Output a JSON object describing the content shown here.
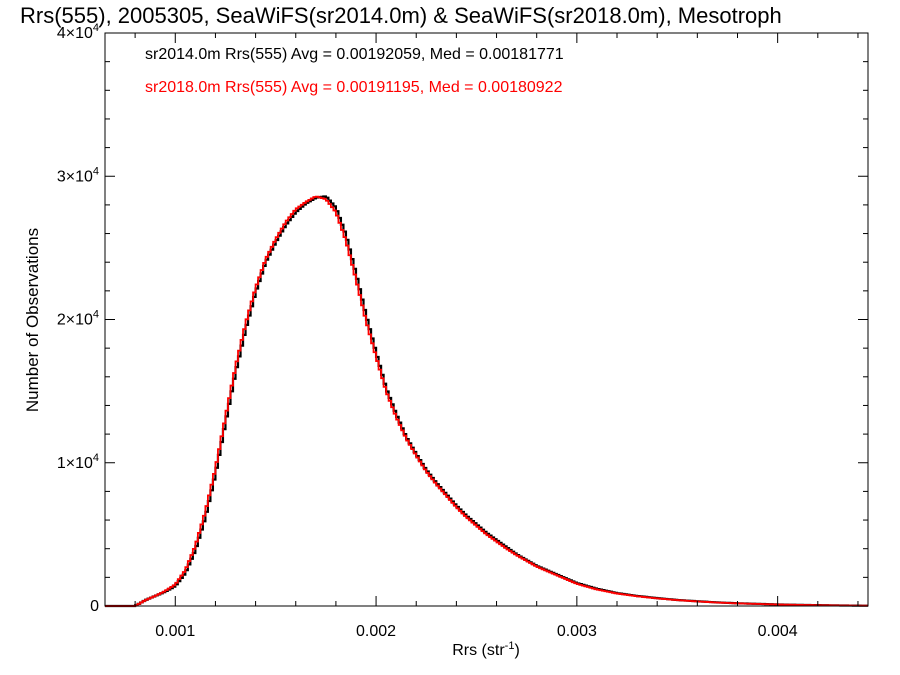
{
  "chart_data": {
    "type": "line",
    "title": "Rrs(555), 2005305, SeaWiFS(sr2014.0m) & SeaWiFS(sr2018.0m), Mesotroph",
    "xlabel": "Rrs (str",
    "xlabel_sup": "-1",
    "xlabel_end": ")",
    "ylabel": "Number of Observations",
    "xlim": [
      0.00065,
      0.00445
    ],
    "ylim": [
      0,
      40000
    ],
    "x_ticks": [
      {
        "value": 0.001,
        "label": "0.001"
      },
      {
        "value": 0.002,
        "label": "0.002"
      },
      {
        "value": 0.003,
        "label": "0.003"
      },
      {
        "value": 0.004,
        "label": "0.004"
      }
    ],
    "y_ticks": [
      {
        "value": 0,
        "mant": "0",
        "exp": ""
      },
      {
        "value": 10000,
        "mant": "1×10",
        "exp": "4"
      },
      {
        "value": 20000,
        "mant": "2×10",
        "exp": "4"
      },
      {
        "value": 30000,
        "mant": "3×10",
        "exp": "4"
      },
      {
        "value": 40000,
        "mant": "4×10",
        "exp": "4"
      }
    ],
    "annotations": [
      {
        "text": "sr2014.0m Rrs(555) Avg = 0.00192059, Med = 0.00181771",
        "color": "#000000"
      },
      {
        "text": "sr2018.0m Rrs(555) Avg = 0.00191195, Med = 0.00180922",
        "color": "#ff0000"
      }
    ],
    "series": [
      {
        "name": "sr2014.0m",
        "color": "#000000",
        "x": [
          0.00065,
          0.0008,
          0.00085,
          0.0009,
          0.00095,
          0.001,
          0.00105,
          0.0011,
          0.00115,
          0.0012,
          0.00125,
          0.0013,
          0.00135,
          0.0014,
          0.00145,
          0.0015,
          0.00155,
          0.0016,
          0.00165,
          0.0017,
          0.00175,
          0.0018,
          0.00185,
          0.0019,
          0.00195,
          0.002,
          0.00205,
          0.0021,
          0.00215,
          0.0022,
          0.00225,
          0.0023,
          0.00235,
          0.0024,
          0.00245,
          0.0025,
          0.00255,
          0.0026,
          0.00265,
          0.0027,
          0.00275,
          0.0028,
          0.00285,
          0.0029,
          0.00295,
          0.003,
          0.0031,
          0.0032,
          0.0033,
          0.0034,
          0.0035,
          0.0036,
          0.0037,
          0.0038,
          0.0039,
          0.004,
          0.0041,
          0.0042,
          0.0043,
          0.0044,
          0.00445
        ],
        "y": [
          0,
          0,
          400,
          700,
          1000,
          1400,
          2300,
          3900,
          6200,
          9200,
          12800,
          16300,
          19300,
          21900,
          24000,
          25400,
          26600,
          27500,
          28100,
          28500,
          28600,
          27800,
          25900,
          23200,
          20300,
          17700,
          15200,
          13400,
          11800,
          10600,
          9500,
          8600,
          7800,
          7000,
          6300,
          5700,
          5100,
          4600,
          4100,
          3600,
          3200,
          2800,
          2500,
          2200,
          1900,
          1600,
          1200,
          900,
          700,
          550,
          420,
          330,
          250,
          190,
          150,
          110,
          80,
          60,
          40,
          25,
          20
        ]
      },
      {
        "name": "sr2018.0m",
        "color": "#ff0000",
        "x": [
          0.00065,
          0.0008,
          0.00085,
          0.0009,
          0.00095,
          0.001,
          0.00105,
          0.0011,
          0.00115,
          0.0012,
          0.00125,
          0.0013,
          0.00135,
          0.0014,
          0.00145,
          0.0015,
          0.00155,
          0.0016,
          0.00165,
          0.0017,
          0.00175,
          0.0018,
          0.00185,
          0.0019,
          0.00195,
          0.002,
          0.00205,
          0.0021,
          0.00215,
          0.0022,
          0.00225,
          0.0023,
          0.00235,
          0.0024,
          0.00245,
          0.0025,
          0.00255,
          0.0026,
          0.00265,
          0.0027,
          0.00275,
          0.0028,
          0.00285,
          0.0029,
          0.00295,
          0.003,
          0.0031,
          0.0032,
          0.0033,
          0.0034,
          0.0035,
          0.0036,
          0.0037,
          0.0038,
          0.0039,
          0.004,
          0.0041,
          0.0042,
          0.0043,
          0.0044,
          0.00445
        ],
        "y": [
          0,
          0,
          400,
          700,
          1050,
          1500,
          2500,
          4200,
          6600,
          9600,
          13200,
          16700,
          19700,
          22200,
          24200,
          25600,
          26800,
          27700,
          28200,
          28600,
          28400,
          27500,
          25500,
          22800,
          19900,
          17400,
          15000,
          13200,
          11700,
          10500,
          9400,
          8500,
          7700,
          6900,
          6200,
          5600,
          5000,
          4500,
          4000,
          3550,
          3150,
          2750,
          2450,
          2150,
          1850,
          1550,
          1150,
          870,
          680,
          530,
          410,
          320,
          240,
          185,
          145,
          105,
          78,
          58,
          38,
          24,
          20
        ]
      }
    ]
  }
}
